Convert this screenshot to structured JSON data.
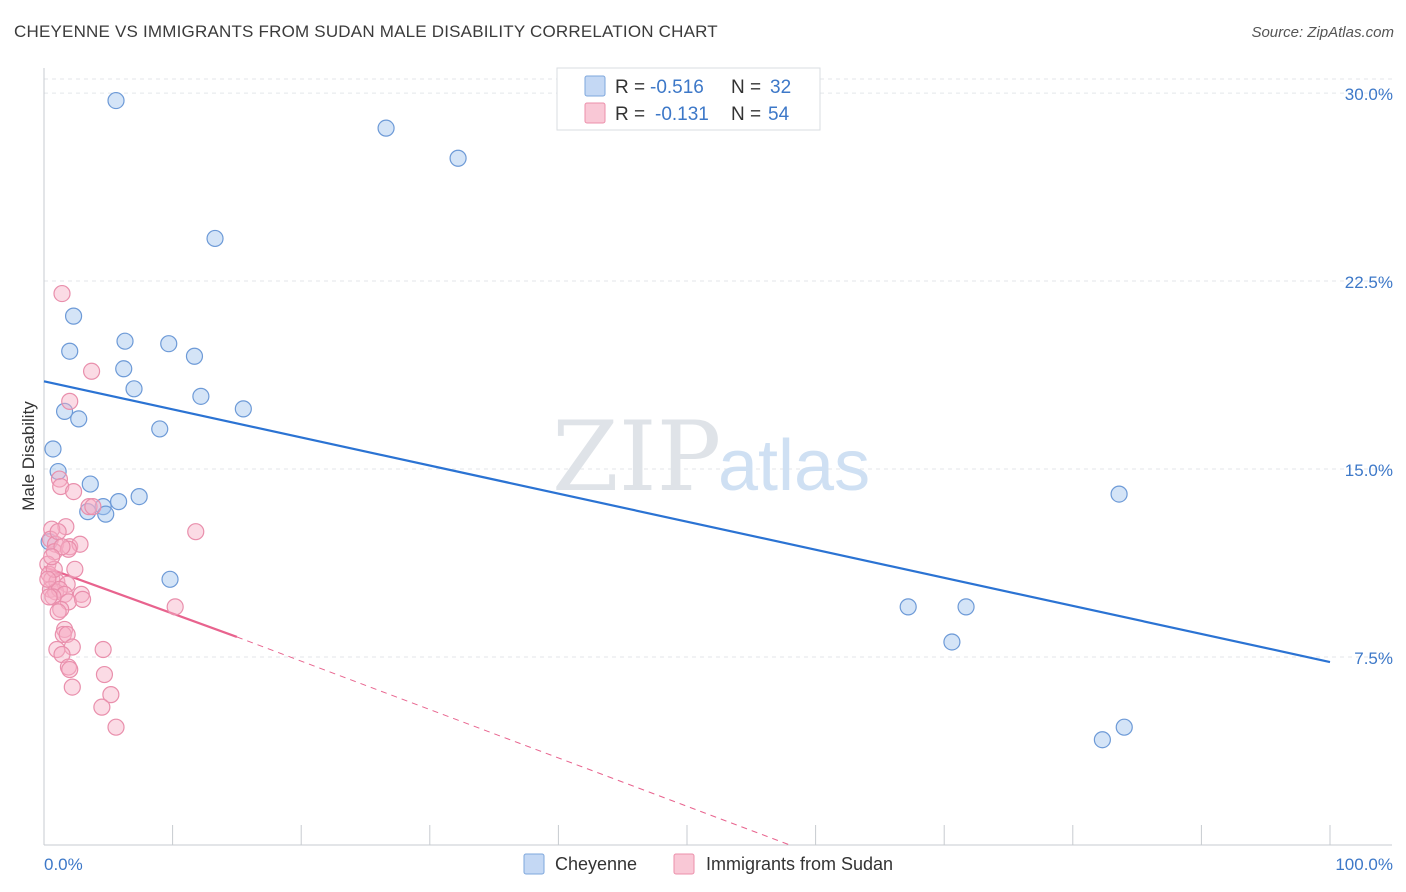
{
  "header": {
    "title": "CHEYENNE VS IMMIGRANTS FROM SUDAN MALE DISABILITY CORRELATION CHART",
    "source": "Source: ZipAtlas.com"
  },
  "watermark": {
    "zip": "ZIP",
    "atlas": "atlas"
  },
  "legend": {
    "r_label": "R =",
    "n_label": "N =",
    "series": [
      {
        "name": "Cheyenne",
        "r": "-0.516",
        "n": "32",
        "fill": "#c4d8f4",
        "stroke": "#7ea7dc"
      },
      {
        "name": "Immigrants from Sudan",
        "r": "-0.131",
        "n": "54",
        "fill": "#f9c8d6",
        "stroke": "#ec8fab"
      }
    ]
  },
  "colors": {
    "blue_line": "#2b73d3",
    "pink_line": "#e8638e",
    "blue_point_fill": "rgba(160,195,238,0.45)",
    "blue_point_stroke": "#6d9ad7",
    "pink_point_fill": "rgba(246,176,198,0.45)",
    "pink_point_stroke": "#e98fac",
    "grid": "#e3e6ea",
    "tick_text": "#3d78c8"
  },
  "chart_data": {
    "type": "scatter",
    "title": "CHEYENNE VS IMMIGRANTS FROM SUDAN MALE DISABILITY CORRELATION CHART",
    "xlabel": "",
    "ylabel": "Male Disability",
    "xlim": [
      0,
      100
    ],
    "ylim": [
      0,
      31
    ],
    "x_tick_labels": [
      {
        "value": 0,
        "label": "0.0%"
      },
      {
        "value": 100,
        "label": "100.0%"
      }
    ],
    "y_ticks": [
      {
        "value": 7.5,
        "label": "7.5%"
      },
      {
        "value": 15.0,
        "label": "15.0%"
      },
      {
        "value": 22.5,
        "label": "22.5%"
      },
      {
        "value": 30.0,
        "label": "30.0%"
      }
    ],
    "x_minor_ticks": [
      0,
      10,
      20,
      30,
      40,
      50,
      60,
      70,
      80,
      90,
      100
    ],
    "grid": true,
    "series": [
      {
        "name": "Cheyenne",
        "color": "blue",
        "points": [
          [
            5.6,
            29.7
          ],
          [
            26.6,
            28.6
          ],
          [
            32.2,
            27.4
          ],
          [
            13.3,
            24.2
          ],
          [
            2.3,
            21.1
          ],
          [
            6.3,
            20.1
          ],
          [
            9.7,
            20.0
          ],
          [
            11.7,
            19.5
          ],
          [
            2.0,
            19.7
          ],
          [
            6.2,
            19.0
          ],
          [
            7.0,
            18.2
          ],
          [
            12.2,
            17.9
          ],
          [
            15.5,
            17.4
          ],
          [
            1.6,
            17.3
          ],
          [
            2.7,
            17.0
          ],
          [
            9.0,
            16.6
          ],
          [
            0.7,
            15.8
          ],
          [
            1.1,
            14.9
          ],
          [
            3.6,
            14.4
          ],
          [
            7.4,
            13.9
          ],
          [
            5.8,
            13.7
          ],
          [
            4.6,
            13.5
          ],
          [
            3.4,
            13.3
          ],
          [
            4.8,
            13.2
          ],
          [
            9.8,
            10.6
          ],
          [
            83.6,
            14.0
          ],
          [
            67.2,
            9.5
          ],
          [
            71.7,
            9.5
          ],
          [
            70.6,
            8.1
          ],
          [
            82.3,
            4.2
          ],
          [
            84.0,
            4.7
          ],
          [
            0.4,
            12.1
          ]
        ]
      },
      {
        "name": "Immigrants from Sudan",
        "color": "pink",
        "points": [
          [
            1.4,
            22.0
          ],
          [
            3.7,
            18.9
          ],
          [
            2.0,
            17.7
          ],
          [
            1.2,
            14.6
          ],
          [
            1.3,
            14.3
          ],
          [
            2.3,
            14.1
          ],
          [
            3.5,
            13.5
          ],
          [
            3.8,
            13.5
          ],
          [
            1.7,
            12.7
          ],
          [
            0.6,
            12.6
          ],
          [
            11.8,
            12.5
          ],
          [
            0.5,
            12.2
          ],
          [
            0.9,
            12.0
          ],
          [
            2.0,
            11.9
          ],
          [
            2.8,
            12.0
          ],
          [
            0.8,
            11.7
          ],
          [
            1.9,
            11.8
          ],
          [
            0.3,
            11.2
          ],
          [
            0.4,
            10.8
          ],
          [
            0.6,
            10.6
          ],
          [
            1.0,
            10.5
          ],
          [
            1.8,
            10.4
          ],
          [
            0.5,
            10.2
          ],
          [
            0.9,
            10.1
          ],
          [
            1.2,
            10.2
          ],
          [
            2.9,
            10.0
          ],
          [
            1.6,
            10.0
          ],
          [
            0.7,
            9.9
          ],
          [
            0.4,
            9.9
          ],
          [
            1.9,
            9.7
          ],
          [
            1.3,
            9.4
          ],
          [
            1.1,
            9.3
          ],
          [
            10.2,
            9.5
          ],
          [
            1.6,
            8.6
          ],
          [
            1.5,
            8.4
          ],
          [
            1.8,
            8.4
          ],
          [
            1.0,
            7.8
          ],
          [
            2.2,
            7.9
          ],
          [
            4.6,
            7.8
          ],
          [
            1.4,
            7.6
          ],
          [
            1.9,
            7.1
          ],
          [
            2.0,
            7.0
          ],
          [
            4.7,
            6.8
          ],
          [
            2.2,
            6.3
          ],
          [
            5.2,
            6.0
          ],
          [
            4.5,
            5.5
          ],
          [
            5.6,
            4.7
          ],
          [
            0.8,
            11.0
          ],
          [
            1.1,
            12.5
          ],
          [
            2.4,
            11.0
          ],
          [
            0.3,
            10.6
          ],
          [
            1.4,
            11.9
          ],
          [
            0.6,
            11.5
          ],
          [
            3.0,
            9.8
          ]
        ]
      }
    ],
    "trendlines": [
      {
        "series": "Cheyenne",
        "x": [
          0,
          100
        ],
        "y": [
          18.5,
          7.3
        ],
        "style": "solid"
      },
      {
        "series": "Immigrants from Sudan",
        "x": [
          0,
          15
        ],
        "y": [
          11.1,
          8.3
        ],
        "style": "solid"
      },
      {
        "series": "Immigrants from Sudan",
        "x": [
          15,
          58
        ],
        "y": [
          8.3,
          0.0
        ],
        "style": "dashed"
      }
    ]
  }
}
